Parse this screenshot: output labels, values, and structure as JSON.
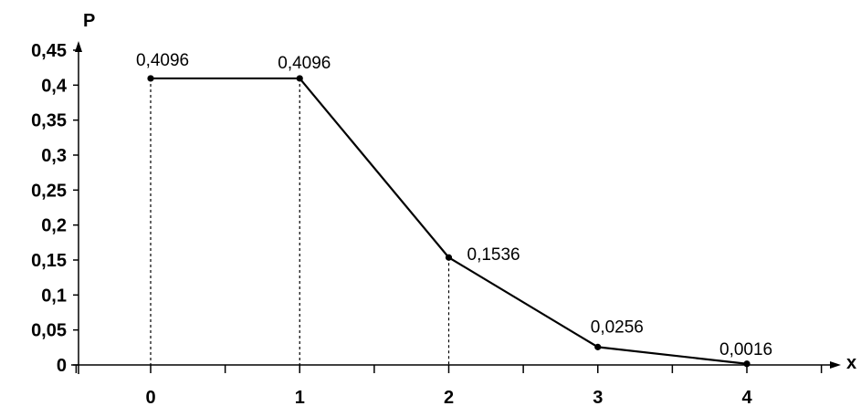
{
  "chart_data": {
    "type": "line",
    "xlabel": "x",
    "ylabel": "P",
    "x": [
      0,
      1,
      2,
      3,
      4
    ],
    "series": [
      {
        "values": [
          0.4096,
          0.4096,
          0.1536,
          0.0256,
          0.0016
        ]
      }
    ],
    "data_labels": [
      "0,4096",
      "0,4096",
      "0,1536",
      "0,0256",
      "0,0016"
    ],
    "x_ticks": [
      0,
      1,
      2,
      3,
      4
    ],
    "x_tick_labels": [
      "0",
      "1",
      "2",
      "3",
      "4"
    ],
    "y_ticks": [
      0,
      0.05,
      0.1,
      0.15,
      0.2,
      0.25,
      0.3,
      0.35,
      0.4,
      0.45
    ],
    "y_tick_labels": [
      "0",
      "0,05",
      "0,1",
      "0,15",
      "0,2",
      "0,25",
      "0,3",
      "0,35",
      "0,4",
      "0,45"
    ],
    "ylim": [
      0,
      0.45
    ],
    "dropline_indices": [
      0,
      1,
      2
    ],
    "grid": false,
    "line_color": "#000000"
  }
}
